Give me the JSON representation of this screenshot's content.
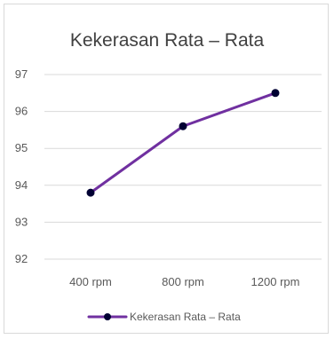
{
  "chart_data": {
    "type": "line",
    "title": "Kekerasan Rata – Rata",
    "categories": [
      "400 rpm",
      "800 rpm",
      "1200 rpm"
    ],
    "series": [
      {
        "name": "Kekerasan Rata – Rata",
        "values": [
          93.8,
          95.6,
          96.5
        ],
        "color": "#7030a0",
        "marker_color": "#000033"
      }
    ],
    "ylim": [
      92,
      97
    ],
    "yticks": [
      "92",
      "93",
      "94",
      "95",
      "96",
      "97"
    ],
    "grid": true,
    "gridline_color": "#d9d9d9",
    "legend_position": "bottom",
    "xlabel": "",
    "ylabel": ""
  }
}
